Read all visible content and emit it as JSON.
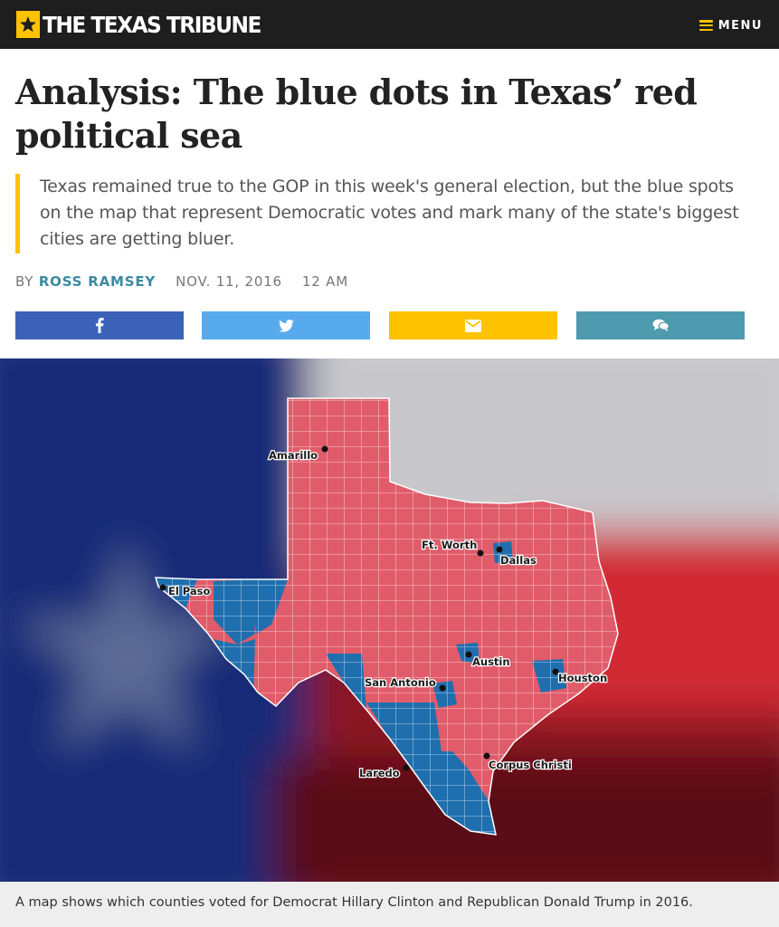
{
  "header": {
    "logo_text": "THE TEXAS TRIBUNE",
    "logo_icon": "star-icon",
    "menu_label": "MENU",
    "menu_icon": "hamburger-icon",
    "accent_color": "#ffc200"
  },
  "article": {
    "headline": "Analysis: The blue dots in Texas’ red political sea",
    "summary": "Texas remained true to the GOP in this week's general election, but the blue spots on the map that represent Democratic votes and mark many of the state's biggest cities are getting bluer.",
    "byline_prefix": "BY",
    "author": "ROSS RAMSEY",
    "date": "NOV. 11, 2016",
    "time": "12 AM"
  },
  "share": [
    {
      "icon": "facebook-icon",
      "color": "#3b62b8"
    },
    {
      "icon": "twitter-icon",
      "color": "#57aaed"
    },
    {
      "icon": "email-icon",
      "color": "#ffc200"
    },
    {
      "icon": "comment-icon",
      "color": "#4e9aae"
    }
  ],
  "map": {
    "colors": {
      "republican": "#e05c6a",
      "democrat": "#1f6fae"
    },
    "cities": [
      "Amarillo",
      "Ft. Worth",
      "Dallas",
      "El Paso",
      "Austin",
      "San Antonio",
      "Houston",
      "Laredo",
      "Corpus Christi"
    ]
  },
  "caption": "A map shows which counties voted for Democrat Hillary Clinton and Republican Donald Trump in 2016."
}
